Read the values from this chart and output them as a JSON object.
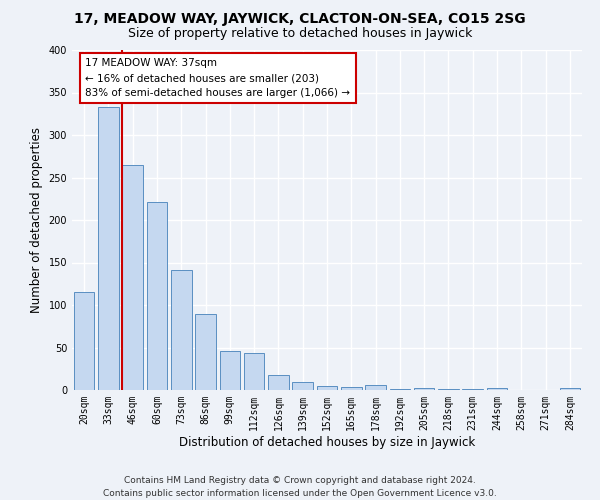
{
  "title": "17, MEADOW WAY, JAYWICK, CLACTON-ON-SEA, CO15 2SG",
  "subtitle": "Size of property relative to detached houses in Jaywick",
  "xlabel": "Distribution of detached houses by size in Jaywick",
  "ylabel": "Number of detached properties",
  "categories": [
    "20sqm",
    "33sqm",
    "46sqm",
    "60sqm",
    "73sqm",
    "86sqm",
    "99sqm",
    "112sqm",
    "126sqm",
    "139sqm",
    "152sqm",
    "165sqm",
    "178sqm",
    "192sqm",
    "205sqm",
    "218sqm",
    "231sqm",
    "244sqm",
    "258sqm",
    "271sqm",
    "284sqm"
  ],
  "values": [
    115,
    333,
    265,
    221,
    141,
    90,
    46,
    43,
    18,
    9,
    5,
    3,
    6,
    1,
    2,
    1,
    1,
    2,
    0,
    0,
    2
  ],
  "bar_color": "#c5d8f0",
  "bar_edge_color": "#5a8fc2",
  "vline_color": "#cc0000",
  "vline_x_index": 1.575,
  "annotation_text": "17 MEADOW WAY: 37sqm\n← 16% of detached houses are smaller (203)\n83% of semi-detached houses are larger (1,066) →",
  "annotation_box_color": "#ffffff",
  "annotation_box_edge": "#cc0000",
  "ylim": [
    0,
    400
  ],
  "yticks": [
    0,
    50,
    100,
    150,
    200,
    250,
    300,
    350,
    400
  ],
  "footer": "Contains HM Land Registry data © Crown copyright and database right 2024.\nContains public sector information licensed under the Open Government Licence v3.0.",
  "bg_color": "#eef2f8",
  "grid_color": "#ffffff",
  "title_fontsize": 10,
  "subtitle_fontsize": 9,
  "label_fontsize": 8.5,
  "tick_fontsize": 7,
  "footer_fontsize": 6.5,
  "annotation_fontsize": 7.5
}
